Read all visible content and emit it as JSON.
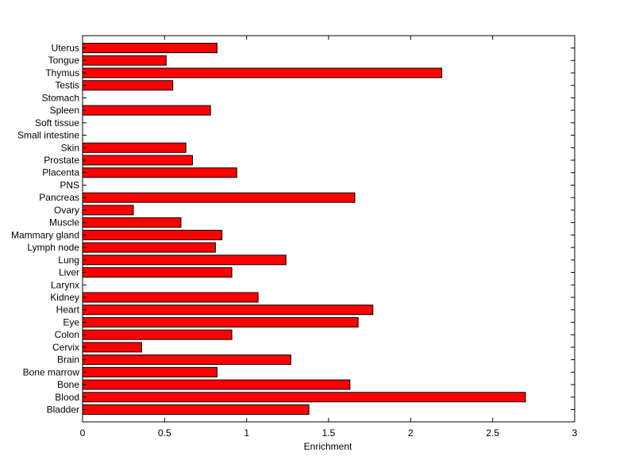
{
  "chart_data": {
    "type": "bar",
    "orientation": "horizontal",
    "xlabel": "Enrichment",
    "ylabel": "",
    "title": "",
    "xlim": [
      0,
      3
    ],
    "xticks": [
      0,
      0.5,
      1,
      1.5,
      2,
      2.5,
      3
    ],
    "xtick_labels": [
      "0",
      "0.5",
      "1",
      "1.5",
      "2",
      "2.5",
      "3"
    ],
    "grid": false,
    "bar_color": "#ff0000",
    "bar_edge_color": "#000000",
    "categories": [
      "Bladder",
      "Blood",
      "Bone",
      "Bone marrow",
      "Brain",
      "Cervix",
      "Colon",
      "Eye",
      "Heart",
      "Kidney",
      "Larynx",
      "Liver",
      "Lung",
      "Lymph node",
      "Mammary gland",
      "Muscle",
      "Ovary",
      "Pancreas",
      "PNS",
      "Placenta",
      "Prostate",
      "Skin",
      "Small intestine",
      "Soft tissue",
      "Spleen",
      "Stomach",
      "Testis",
      "Thymus",
      "Tongue",
      "Uterus"
    ],
    "values": [
      1.38,
      2.7,
      1.63,
      0.82,
      1.27,
      0.36,
      0.91,
      1.68,
      1.77,
      1.07,
      0,
      0.91,
      1.24,
      0.81,
      0.85,
      0.6,
      0.31,
      1.66,
      0,
      0.94,
      0.67,
      0.63,
      0,
      0,
      0.78,
      0,
      0.55,
      2.19,
      0.51,
      0.82
    ]
  }
}
